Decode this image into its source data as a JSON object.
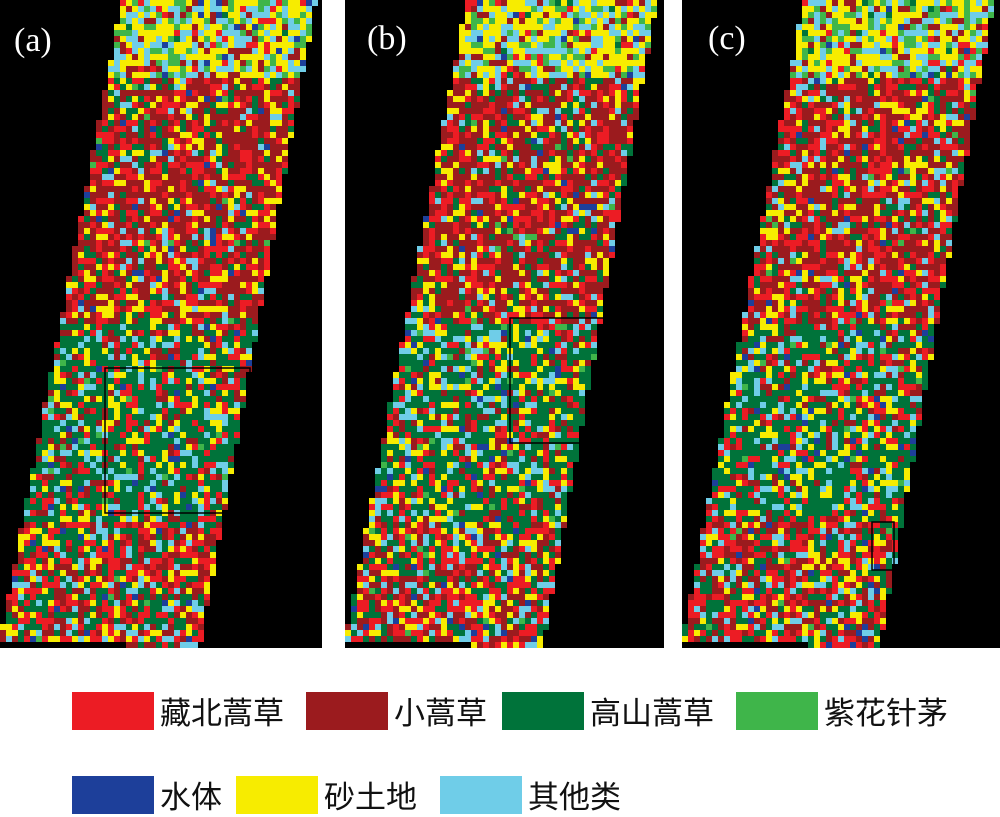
{
  "panels": [
    {
      "id": "a",
      "label": "(a)"
    },
    {
      "id": "b",
      "label": "(b)"
    },
    {
      "id": "c",
      "label": "(c)"
    }
  ],
  "legend": [
    {
      "label": "藏北蒿草",
      "color": "#ec1c24"
    },
    {
      "label": "小蒿草",
      "color": "#9b1b1e"
    },
    {
      "label": "高山蒿草",
      "color": "#00733a"
    },
    {
      "label": "紫花针茅",
      "color": "#3fb54a"
    },
    {
      "label": "水体",
      "color": "#1d3f9a"
    },
    {
      "label": "砂土地",
      "color": "#f7ec00"
    },
    {
      "label": "其他类",
      "color": "#6fcde8"
    }
  ]
}
